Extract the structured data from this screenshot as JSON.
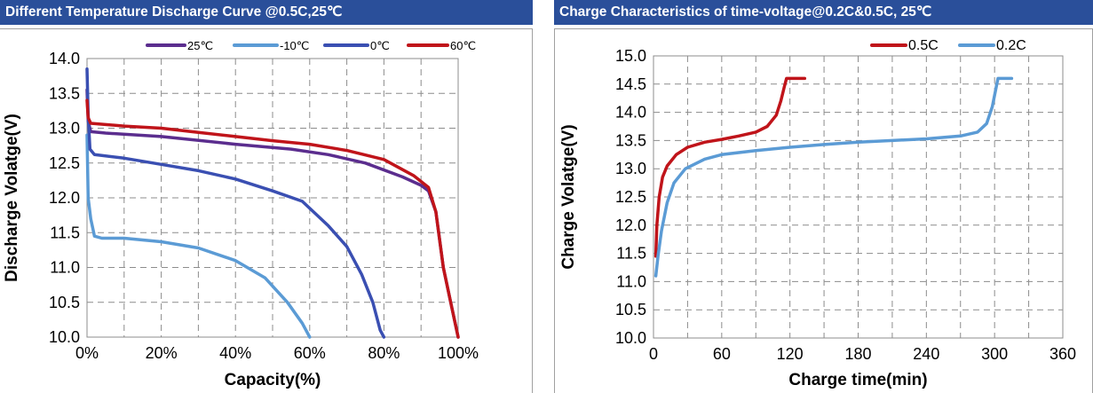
{
  "chart_data": [
    {
      "type": "line",
      "title": "Different Temperature Discharge Curve @0.5C,25℃",
      "xlabel": "Capacity(%)",
      "ylabel": "Discharge Volatge(V)",
      "xlim": [
        0,
        100
      ],
      "ylim": [
        10.0,
        14.0
      ],
      "xticks": [
        "0%",
        "20%",
        "40%",
        "60%",
        "80%",
        "100%"
      ],
      "yticks": [
        "10.0",
        "10.5",
        "11.0",
        "11.5",
        "12.0",
        "12.5",
        "13.0",
        "13.5",
        "14.0"
      ],
      "grid": true,
      "legend_position": "top",
      "series": [
        {
          "name": "25℃",
          "color": "#5b2d8e",
          "points": [
            [
              0,
              13.55
            ],
            [
              0.3,
              13.1
            ],
            [
              1,
              12.95
            ],
            [
              5,
              12.93
            ],
            [
              20,
              12.88
            ],
            [
              40,
              12.77
            ],
            [
              55,
              12.7
            ],
            [
              65,
              12.62
            ],
            [
              75,
              12.5
            ],
            [
              85,
              12.3
            ],
            [
              90,
              12.18
            ],
            [
              92,
              12.1
            ],
            [
              94,
              11.8
            ],
            [
              96,
              11.0
            ],
            [
              98,
              10.5
            ],
            [
              100,
              10.0
            ]
          ]
        },
        {
          "name": "-10℃",
          "color": "#5b9bd5",
          "points": [
            [
              0,
              12.9
            ],
            [
              0.3,
              12.0
            ],
            [
              1,
              11.7
            ],
            [
              2,
              11.45
            ],
            [
              4,
              11.42
            ],
            [
              10,
              11.42
            ],
            [
              20,
              11.37
            ],
            [
              30,
              11.28
            ],
            [
              40,
              11.1
            ],
            [
              48,
              10.85
            ],
            [
              54,
              10.5
            ],
            [
              58,
              10.2
            ],
            [
              60,
              10.0
            ]
          ]
        },
        {
          "name": "0℃",
          "color": "#3a4fb2",
          "points": [
            [
              0,
              13.85
            ],
            [
              0.3,
              13.2
            ],
            [
              0.8,
              12.7
            ],
            [
              2,
              12.62
            ],
            [
              10,
              12.57
            ],
            [
              20,
              12.48
            ],
            [
              30,
              12.39
            ],
            [
              40,
              12.27
            ],
            [
              50,
              12.1
            ],
            [
              58,
              11.95
            ],
            [
              65,
              11.6
            ],
            [
              70,
              11.3
            ],
            [
              74,
              10.9
            ],
            [
              77,
              10.5
            ],
            [
              79,
              10.1
            ],
            [
              80,
              10.0
            ]
          ]
        },
        {
          "name": "60℃",
          "color": "#c0141a",
          "points": [
            [
              0,
              13.4
            ],
            [
              0.3,
              13.15
            ],
            [
              1,
              13.07
            ],
            [
              10,
              13.03
            ],
            [
              20,
              13.0
            ],
            [
              30,
              12.94
            ],
            [
              40,
              12.88
            ],
            [
              50,
              12.82
            ],
            [
              60,
              12.77
            ],
            [
              70,
              12.68
            ],
            [
              80,
              12.55
            ],
            [
              88,
              12.32
            ],
            [
              92,
              12.15
            ],
            [
              94,
              11.8
            ],
            [
              96,
              11.0
            ],
            [
              98,
              10.5
            ],
            [
              100,
              10.0
            ]
          ]
        }
      ]
    },
    {
      "type": "line",
      "title": "Charge  Characteristics of time-voltage@0.2C&0.5C, 25℃",
      "xlabel": "Charge time(min)",
      "ylabel": "Charge Volatge(V)",
      "xlim": [
        0,
        360
      ],
      "ylim": [
        10.0,
        15.0
      ],
      "xticks": [
        "0",
        "60",
        "120",
        "180",
        "240",
        "300",
        "360"
      ],
      "yticks": [
        "10.0",
        "10.5",
        "11.0",
        "11.5",
        "12.0",
        "12.5",
        "13.0",
        "13.5",
        "14.0",
        "14.5",
        "15.0"
      ],
      "grid": true,
      "legend_position": "top-right",
      "series": [
        {
          "name": "0.5C",
          "color": "#c0141a",
          "points": [
            [
              2,
              11.45
            ],
            [
              3,
              12.0
            ],
            [
              5,
              12.5
            ],
            [
              8,
              12.85
            ],
            [
              12,
              13.05
            ],
            [
              20,
              13.25
            ],
            [
              30,
              13.38
            ],
            [
              45,
              13.47
            ],
            [
              60,
              13.52
            ],
            [
              75,
              13.58
            ],
            [
              90,
              13.65
            ],
            [
              100,
              13.75
            ],
            [
              108,
              13.95
            ],
            [
              112,
              14.2
            ],
            [
              115,
              14.45
            ],
            [
              117,
              14.6
            ],
            [
              133,
              14.6
            ]
          ]
        },
        {
          "name": "0.2C",
          "color": "#5b9bd5",
          "points": [
            [
              2,
              11.1
            ],
            [
              4,
              11.45
            ],
            [
              7,
              11.9
            ],
            [
              12,
              12.4
            ],
            [
              18,
              12.75
            ],
            [
              28,
              13.0
            ],
            [
              45,
              13.17
            ],
            [
              60,
              13.25
            ],
            [
              90,
              13.32
            ],
            [
              120,
              13.38
            ],
            [
              150,
              13.43
            ],
            [
              180,
              13.47
            ],
            [
              210,
              13.5
            ],
            [
              240,
              13.53
            ],
            [
              270,
              13.58
            ],
            [
              285,
              13.65
            ],
            [
              293,
              13.8
            ],
            [
              298,
              14.1
            ],
            [
              301,
              14.4
            ],
            [
              303,
              14.6
            ],
            [
              315,
              14.6
            ]
          ]
        }
      ]
    }
  ]
}
